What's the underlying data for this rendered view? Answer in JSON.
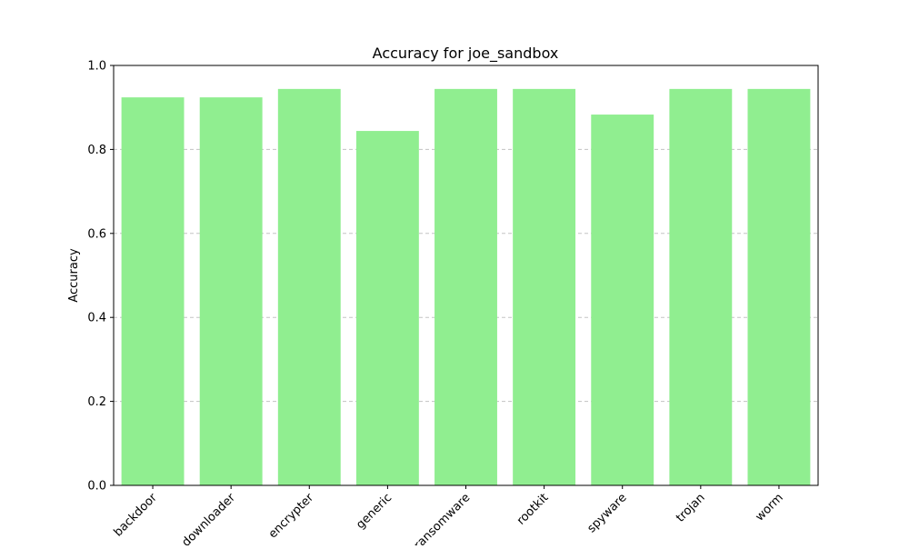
{
  "chart_data": {
    "type": "bar",
    "title": "Accuracy for joe_sandbox",
    "xlabel": "",
    "ylabel": "Accuracy",
    "categories": [
      "backdoor",
      "downloader",
      "encrypter",
      "generic",
      "ransomware",
      "rootkit",
      "spyware",
      "trojan",
      "worm"
    ],
    "values": [
      0.924,
      0.924,
      0.944,
      0.844,
      0.944,
      0.944,
      0.883,
      0.944,
      0.944
    ],
    "ylim": [
      0,
      1.0
    ],
    "yticks": [
      "0.0",
      "0.2",
      "0.4",
      "0.6",
      "0.8",
      "1.0"
    ],
    "grid": "y-dashed",
    "bar_color": "#90ee90"
  }
}
